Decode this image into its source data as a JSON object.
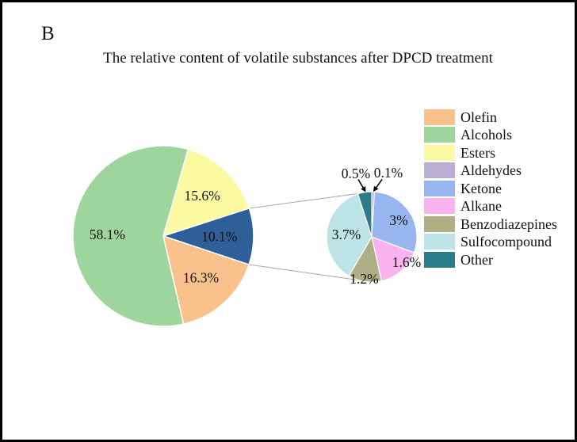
{
  "figure_label": "B",
  "chart_data": {
    "type": "pie-of-pie",
    "title": "The relative content of volatile substances after DPCD treatment",
    "legend_position": "right",
    "colors": {
      "Olefin": "#F9C28C",
      "Alcohols": "#9DD59C",
      "Esters": "#FBFAA2",
      "Aldehydes": "#B9AED3",
      "Ketone": "#97B5EE",
      "Alkane": "#FBB3F0",
      "Benzodiazepines": "#AFAF86",
      "Sulfocompound": "#BDE4E7",
      "Other": "#2B7C8B",
      "Other group": "#2F5F99"
    },
    "main_pie": {
      "start_angle_deg": 16,
      "slices": [
        {
          "label": "Esters",
          "value_pct": 15.6,
          "display": "15.6%"
        },
        {
          "label": "Other group",
          "value_pct": 10.1,
          "display": "10.1%"
        },
        {
          "label": "Olefin",
          "value_pct": 16.3,
          "display": "16.3%"
        },
        {
          "label": "Alcohols",
          "value_pct": 58.1,
          "display": "58.1%"
        }
      ]
    },
    "secondary_pie": {
      "represents": "Other group",
      "start_angle_deg": 0,
      "slices": [
        {
          "label": "Aldehydes",
          "value_pct": 0.1,
          "display": "0.1%"
        },
        {
          "label": "Ketone",
          "value_pct": 3,
          "display": "3%"
        },
        {
          "label": "Alkane",
          "value_pct": 1.6,
          "display": "1.6%"
        },
        {
          "label": "Benzodiazepines",
          "value_pct": 1.2,
          "display": "1.2%"
        },
        {
          "label": "Sulfocompound",
          "value_pct": 3.7,
          "display": "3.7%"
        },
        {
          "label": "Other",
          "value_pct": 0.5,
          "display": "0.5%"
        }
      ]
    },
    "legend_items": [
      "Olefin",
      "Alcohols",
      "Esters",
      "Aldehydes",
      "Ketone",
      "Alkane",
      "Benzodiazepines",
      "Sulfocompound",
      "Other"
    ]
  }
}
